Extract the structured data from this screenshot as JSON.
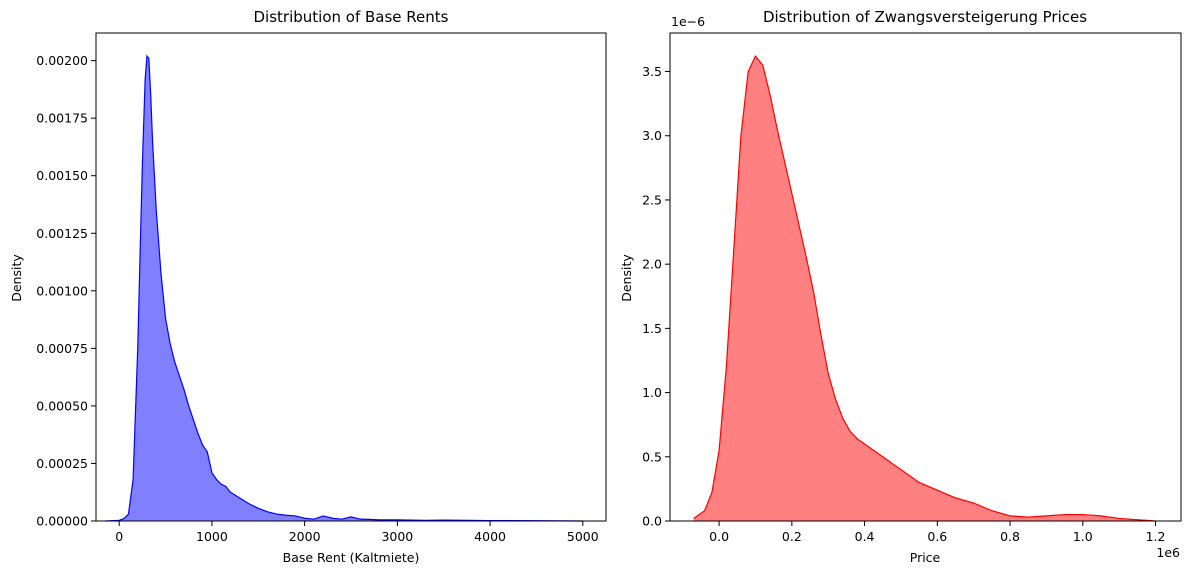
{
  "chart_data": [
    {
      "type": "area",
      "title": "Distribution of Base Rents",
      "xlabel": "Base Rent (Kaltmiete)",
      "ylabel": "Density",
      "xlim": [
        -250,
        5250
      ],
      "ylim": [
        0,
        0.00212
      ],
      "x_ticks": [
        0,
        1000,
        2000,
        3000,
        4000,
        5000
      ],
      "x_tick_labels": [
        "0",
        "1000",
        "2000",
        "3000",
        "4000",
        "5000"
      ],
      "y_ticks": [
        0,
        0.00025,
        0.0005,
        0.00075,
        0.001,
        0.00125,
        0.0015,
        0.00175,
        0.002
      ],
      "y_tick_labels": [
        "0.00000",
        "0.00025",
        "0.00050",
        "0.00075",
        "0.00100",
        "0.00125",
        "0.00150",
        "0.00175",
        "0.00200"
      ],
      "grid": false,
      "fill_color": "#8080ff",
      "line_color": "#0000ff",
      "series": [
        {
          "x": [
            -150,
            0,
            50,
            100,
            150,
            200,
            250,
            280,
            300,
            320,
            340,
            360,
            400,
            450,
            500,
            550,
            600,
            650,
            700,
            750,
            800,
            850,
            900,
            950,
            1000,
            1050,
            1100,
            1150,
            1200,
            1300,
            1400,
            1500,
            1600,
            1700,
            1800,
            1900,
            2000,
            2100,
            2200,
            2300,
            2400,
            2500,
            2600,
            2700,
            2800,
            3000,
            3300,
            3500,
            4000,
            4500,
            5000
          ],
          "y": [
            0,
            3e-06,
            1e-05,
            3e-05,
            0.00018,
            0.00075,
            0.00155,
            0.00192,
            0.00202,
            0.00201,
            0.00185,
            0.00165,
            0.00135,
            0.00108,
            0.00088,
            0.00077,
            0.00069,
            0.00063,
            0.00057,
            0.0005,
            0.00044,
            0.00038,
            0.00033,
            0.0003,
            0.00021,
            0.00018,
            0.00016,
            0.00015,
            0.000125,
            0.0001,
            7.5e-05,
            5.5e-05,
            4e-05,
            3e-05,
            2.5e-05,
            2.2e-05,
            1.2e-05,
            8e-06,
            2.2e-05,
            1.2e-05,
            8e-06,
            1.8e-05,
            8e-06,
            7e-06,
            5e-06,
            5e-06,
            3e-06,
            4e-06,
            2e-06,
            1e-06,
            0
          ]
        }
      ]
    },
    {
      "type": "area",
      "title": "Distribution of Zwangsversteigerung Prices",
      "xlabel": "Price",
      "ylabel": "Density",
      "x_offset_label": "1e6",
      "y_offset_label": "1e−6",
      "xlim": [
        -0.135,
        1.27
      ],
      "ylim": [
        0,
        3.8
      ],
      "x_ticks": [
        0,
        0.2,
        0.4,
        0.6,
        0.8,
        1.0,
        1.2
      ],
      "x_tick_labels": [
        "0.0",
        "0.2",
        "0.4",
        "0.6",
        "0.8",
        "1.0",
        "1.2"
      ],
      "y_ticks": [
        0,
        0.5,
        1.0,
        1.5,
        2.0,
        2.5,
        3.0,
        3.5
      ],
      "y_tick_labels": [
        "0.0",
        "0.5",
        "1.0",
        "1.5",
        "2.0",
        "2.5",
        "3.0",
        "3.5"
      ],
      "grid": false,
      "fill_color": "#ff8080",
      "line_color": "#ff0000",
      "series": [
        {
          "x": [
            -0.07,
            -0.04,
            -0.02,
            0.0,
            0.02,
            0.04,
            0.06,
            0.08,
            0.1,
            0.12,
            0.14,
            0.16,
            0.18,
            0.2,
            0.22,
            0.24,
            0.26,
            0.28,
            0.3,
            0.32,
            0.34,
            0.36,
            0.38,
            0.4,
            0.45,
            0.5,
            0.55,
            0.6,
            0.65,
            0.7,
            0.75,
            0.8,
            0.85,
            0.9,
            0.95,
            1.0,
            1.05,
            1.1,
            1.15,
            1.2
          ],
          "y": [
            0.02,
            0.08,
            0.22,
            0.55,
            1.2,
            2.1,
            3.0,
            3.5,
            3.62,
            3.55,
            3.32,
            3.05,
            2.8,
            2.55,
            2.3,
            2.05,
            1.78,
            1.45,
            1.15,
            0.95,
            0.8,
            0.7,
            0.64,
            0.6,
            0.5,
            0.4,
            0.3,
            0.24,
            0.18,
            0.14,
            0.08,
            0.04,
            0.03,
            0.04,
            0.05,
            0.05,
            0.04,
            0.02,
            0.01,
            0.0
          ]
        }
      ]
    }
  ]
}
